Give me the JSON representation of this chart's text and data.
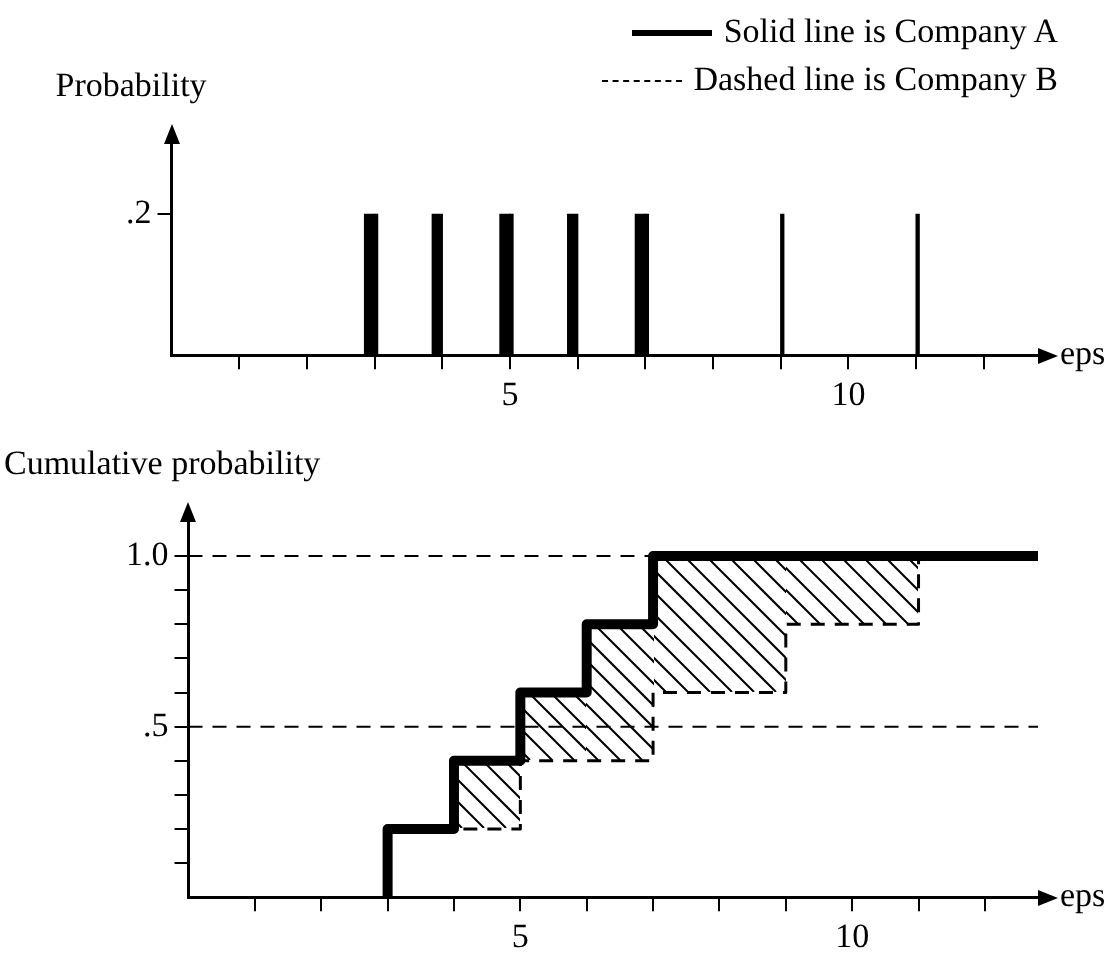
{
  "chart_data": [
    {
      "type": "bar",
      "ylabel": "Probability",
      "xlabel": "eps",
      "legend": "top right",
      "grid": false,
      "xlim": [
        0,
        12.8
      ],
      "xticks": [
        {
          "value": 1,
          "label": null
        },
        {
          "value": 2,
          "label": null
        },
        {
          "value": 3,
          "label": null
        },
        {
          "value": 4,
          "label": null
        },
        {
          "value": 5,
          "label": "5"
        },
        {
          "value": 6,
          "label": null
        },
        {
          "value": 7,
          "label": null
        },
        {
          "value": 8,
          "label": null
        },
        {
          "value": 9,
          "label": null
        },
        {
          "value": 10,
          "label": "10"
        },
        {
          "value": 11,
          "label": null
        },
        {
          "value": 12,
          "label": null
        }
      ],
      "ylim": [
        0,
        0.3
      ],
      "yticks": [
        {
          "value": 0.2,
          "label": ".2"
        }
      ],
      "series": [
        {
          "name": "Solid line is Company A",
          "color": "#000000",
          "line_style": "solid",
          "x": [
            3,
            4,
            5,
            6,
            7
          ],
          "values": [
            0.2,
            0.2,
            0.2,
            0.2,
            0.2
          ]
        },
        {
          "name": "Dashed line is Company B",
          "color": "#000000",
          "line_style": "dashed",
          "x": [
            3,
            5,
            7,
            9,
            11
          ],
          "values": [
            0.2,
            0.2,
            0.2,
            0.2,
            0.2
          ]
        }
      ]
    },
    {
      "type": "step",
      "ylabel": "Cumulative probability",
      "xlabel": "eps",
      "grid": false,
      "xlim": [
        0,
        12.8
      ],
      "xticks": [
        {
          "value": 1,
          "label": null
        },
        {
          "value": 2,
          "label": null
        },
        {
          "value": 3,
          "label": null
        },
        {
          "value": 4,
          "label": null
        },
        {
          "value": 5,
          "label": "5"
        },
        {
          "value": 6,
          "label": null
        },
        {
          "value": 7,
          "label": null
        },
        {
          "value": 8,
          "label": null
        },
        {
          "value": 9,
          "label": null
        },
        {
          "value": 10,
          "label": "10"
        },
        {
          "value": 11,
          "label": null
        },
        {
          "value": 12,
          "label": null
        }
      ],
      "ylim": [
        0,
        1.1
      ],
      "yticks": [
        {
          "value": 0.1,
          "label": null
        },
        {
          "value": 0.2,
          "label": null
        },
        {
          "value": 0.3,
          "label": null
        },
        {
          "value": 0.4,
          "label": null
        },
        {
          "value": 0.5,
          "label": ".5"
        },
        {
          "value": 0.6,
          "label": null
        },
        {
          "value": 0.7,
          "label": null
        },
        {
          "value": 0.8,
          "label": null
        },
        {
          "value": 0.9,
          "label": null
        },
        {
          "value": 1.0,
          "label": "1.0"
        }
      ],
      "ref_lines": [
        {
          "axis": "y",
          "value": 1.0,
          "line_style": "dashed"
        },
        {
          "axis": "y",
          "value": 0.5,
          "line_style": "dashed"
        }
      ],
      "series": [
        {
          "color": "#000000",
          "line_style": "solid",
          "x": [
            3,
            3,
            4,
            5,
            6,
            7,
            12.8
          ],
          "values": [
            0,
            0.2,
            0.4,
            0.6,
            0.8,
            1.0,
            1.0
          ]
        },
        {
          "color": "#000000",
          "line_style": "dashed",
          "x": [
            3,
            3,
            5,
            7,
            9,
            11,
            12.8
          ],
          "values": [
            0,
            0.2,
            0.4,
            0.6,
            0.8,
            1.0,
            1.0
          ]
        }
      ]
    }
  ]
}
